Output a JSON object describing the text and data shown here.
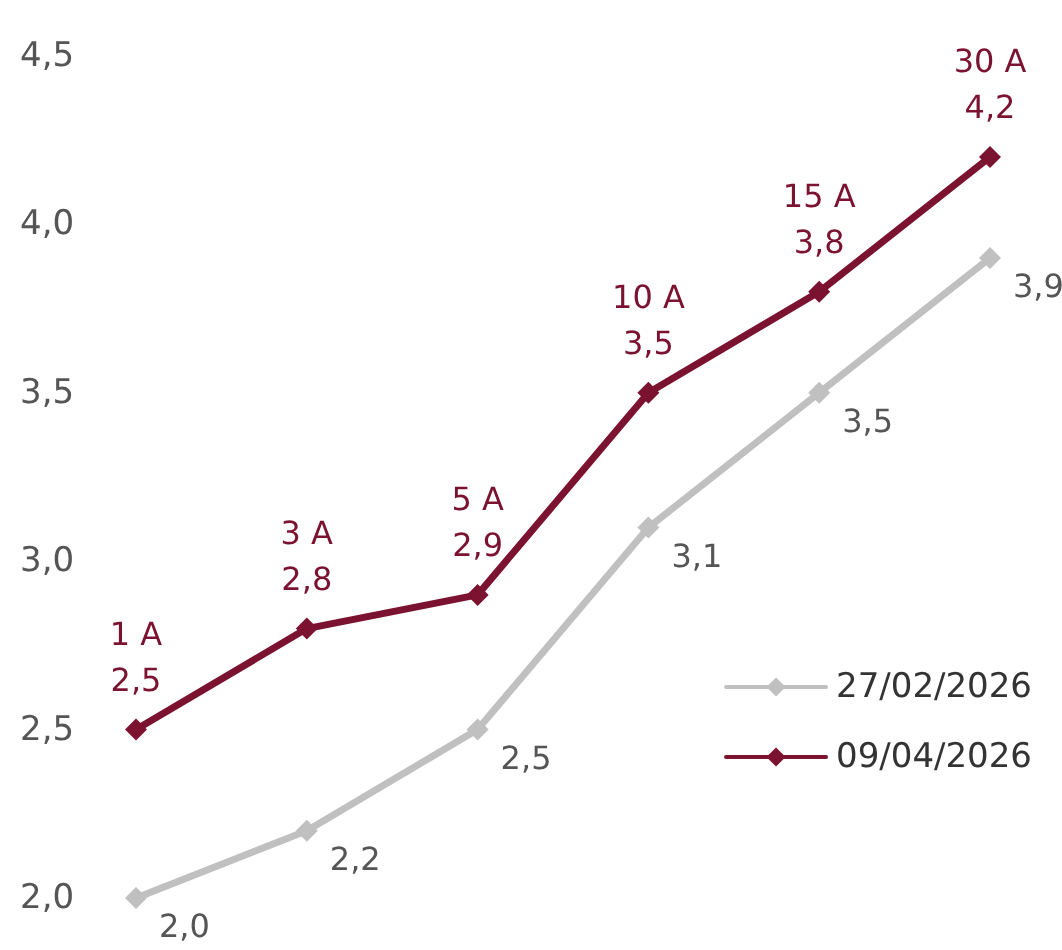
{
  "chart_data": {
    "type": "line",
    "categories": [
      null,
      null,
      null,
      null,
      null,
      null
    ],
    "ylim": [
      2.0,
      4.5
    ],
    "yticks": [
      {
        "value": 2.0,
        "label": "2,0"
      },
      {
        "value": 2.5,
        "label": "2,5"
      },
      {
        "value": 3.0,
        "label": "3,0"
      },
      {
        "value": 3.5,
        "label": "3,5"
      },
      {
        "value": 4.0,
        "label": "4,0"
      },
      {
        "value": 4.5,
        "label": "4,5"
      }
    ],
    "tick_labels": "y",
    "grid": false,
    "legend": "bottom right",
    "marker": "diamond",
    "line_style": "solid",
    "series": [
      {
        "name": "27/02/2026",
        "color": "#c0c0c0",
        "values": [
          2.0,
          2.2,
          2.5,
          3.1,
          3.5,
          3.9
        ],
        "value_labels": [
          "2,0",
          "2,2",
          "2,5",
          "3,1",
          "3,5",
          "3,9"
        ]
      },
      {
        "name": "09/04/2026",
        "color": "#7b1230",
        "values": [
          2.5,
          2.8,
          2.9,
          3.5,
          3.8,
          4.2
        ],
        "value_labels": [
          "2,5",
          "2,8",
          "2,9",
          "3,5",
          "3,8",
          "4,2"
        ]
      }
    ],
    "annotations": [
      {
        "text": "1 A",
        "y": 2.5
      },
      {
        "text": "3 A",
        "y": 2.8
      },
      {
        "text": "5 A",
        "y": 2.9
      },
      {
        "text": "10 A",
        "y": 3.5
      },
      {
        "text": "15 A",
        "y": 3.8
      },
      {
        "text": "30 A",
        "y": 4.2
      }
    ]
  }
}
